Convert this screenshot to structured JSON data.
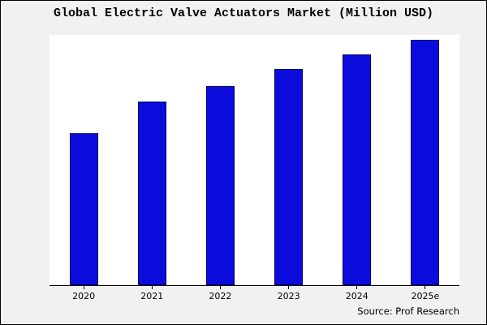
{
  "title": "Global Electric Valve Actuators Market (Million USD)",
  "source": "Source: Prof Research",
  "chart_data": {
    "type": "bar",
    "title": "Global Electric Valve Actuators Market (Million USD)",
    "categories": [
      "2020",
      "2021",
      "2022",
      "2023",
      "2024",
      "2025e"
    ],
    "values": [
      62,
      75,
      81,
      88,
      94,
      100
    ],
    "xlabel": "",
    "ylabel": "",
    "ylim": [
      0,
      102
    ],
    "grid": false,
    "legend": "none",
    "bar_color": "#0b0bdc",
    "bar_edge_color": "#000066",
    "plot_background": "#ffffff",
    "figure_background": "#f1f1f1",
    "annotation": "Source: Prof Research"
  }
}
